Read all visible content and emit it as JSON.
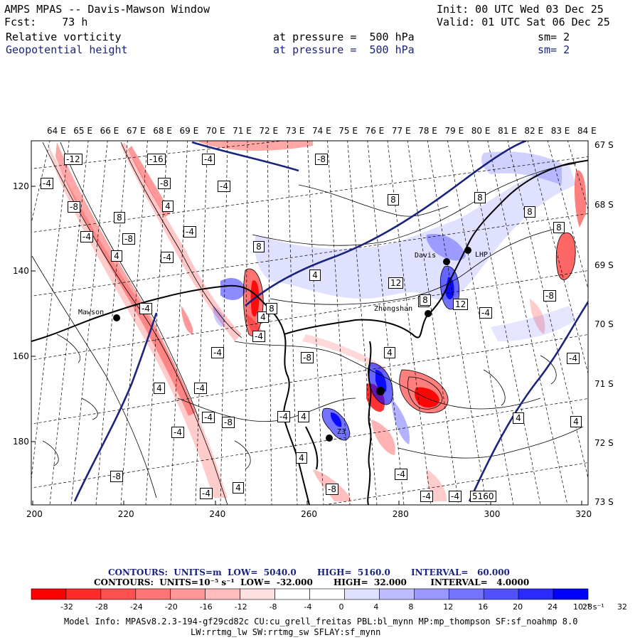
{
  "header": {
    "title": "AMPS MPAS -- Davis-Mawson Window",
    "fcst": "Fcst:    73 h",
    "init": "Init: 00 UTC Wed 03 Dec 25",
    "valid": "Valid: 01 UTC Sat 06 Dec 25",
    "field1": {
      "name": "Relative vorticity",
      "level": "at pressure =  500 hPa",
      "sm": "sm= 2"
    },
    "field2": {
      "name": "Geopotential height",
      "level": "at pressure =  500 hPa",
      "sm": "sm= 2"
    }
  },
  "map": {
    "lon_labels": [
      "64 E",
      "65 E",
      "66 E",
      "67 E",
      "68 E",
      "69 E",
      "70 E",
      "71 E",
      "72 E",
      "73 E",
      "74 E",
      "75 E",
      "76 E",
      "77 E",
      "78 E",
      "79 E",
      "80 E",
      "81 E",
      "82 E",
      "83 E",
      "84 E"
    ],
    "lat_labels": [
      "67 S",
      "68 S",
      "69 S",
      "70 S",
      "71 S",
      "72 S",
      "73 S"
    ],
    "x_ticks": [
      "200",
      "220",
      "240",
      "260",
      "280",
      "300",
      "320"
    ],
    "y_ticks": [
      "120",
      "140",
      "160",
      "180"
    ],
    "stations": [
      {
        "name": "Mawson"
      },
      {
        "name": "Davis"
      },
      {
        "name": "Zhongshan"
      },
      {
        "name": "LHP"
      },
      {
        "name": "Z3"
      }
    ],
    "contour_labels": [
      "-12",
      "-16",
      "-4",
      "-8",
      "-4",
      "-8",
      "-4",
      "-8",
      "4",
      "8",
      "-4",
      "-4",
      "-8",
      "-4",
      "4",
      "8",
      "4",
      "4",
      "8",
      "8",
      "12",
      "4",
      "12",
      "8",
      "8",
      "8",
      "-8",
      "-4",
      "-4",
      "-8",
      "-4",
      "-4",
      "4",
      "-4",
      "-8",
      "-4",
      "8",
      "4",
      "-4",
      "-8",
      "4",
      "-4",
      "4",
      "4",
      "-4",
      "4",
      "-4",
      "-4",
      "-8",
      "-4",
      "4",
      "5160",
      "-4"
    ],
    "colors": {
      "height_contour": "#1a237e",
      "coast": "#000000"
    }
  },
  "legend": {
    "contours1": "CONTOURS:  UNITS=m  LOW=  5040.0       HIGH=  5160.0       INTERVAL=   60.000",
    "contours2": "CONTOURS:  UNITS=10⁻⁵ s⁻¹  LOW=  -32.000       HIGH=  32.000        INTERVAL=   4.0000",
    "scale_labels": [
      "-32",
      "-28",
      "-24",
      "-20",
      "-16",
      "-12",
      "-8",
      "-4",
      "0",
      "4",
      "8",
      "12",
      "16",
      "20",
      "24",
      "28",
      "32"
    ],
    "scale_units": "10⁻⁵ s⁻¹",
    "scale_colors": [
      "#ff0000",
      "#ff2a2a",
      "#ff5050",
      "#ff7474",
      "#ff9898",
      "#ffbcbc",
      "#ffe0e0",
      "#ffffff",
      "#ffffff",
      "#e0e0ff",
      "#bcbcff",
      "#9898ff",
      "#7474ff",
      "#5050ff",
      "#2a2aff",
      "#0000ff"
    ]
  },
  "footer": {
    "line1": "Model Info: MPASv8.2.3-194-gf29cd82c CU:cu_grell_freitas PBL:bl_mynn MP:mp_thompson SF:sf_noahmp 8.0",
    "line2": "LW:rrtmg_lw SW:rrtmg_sw SFLAY:sf_mynn"
  }
}
